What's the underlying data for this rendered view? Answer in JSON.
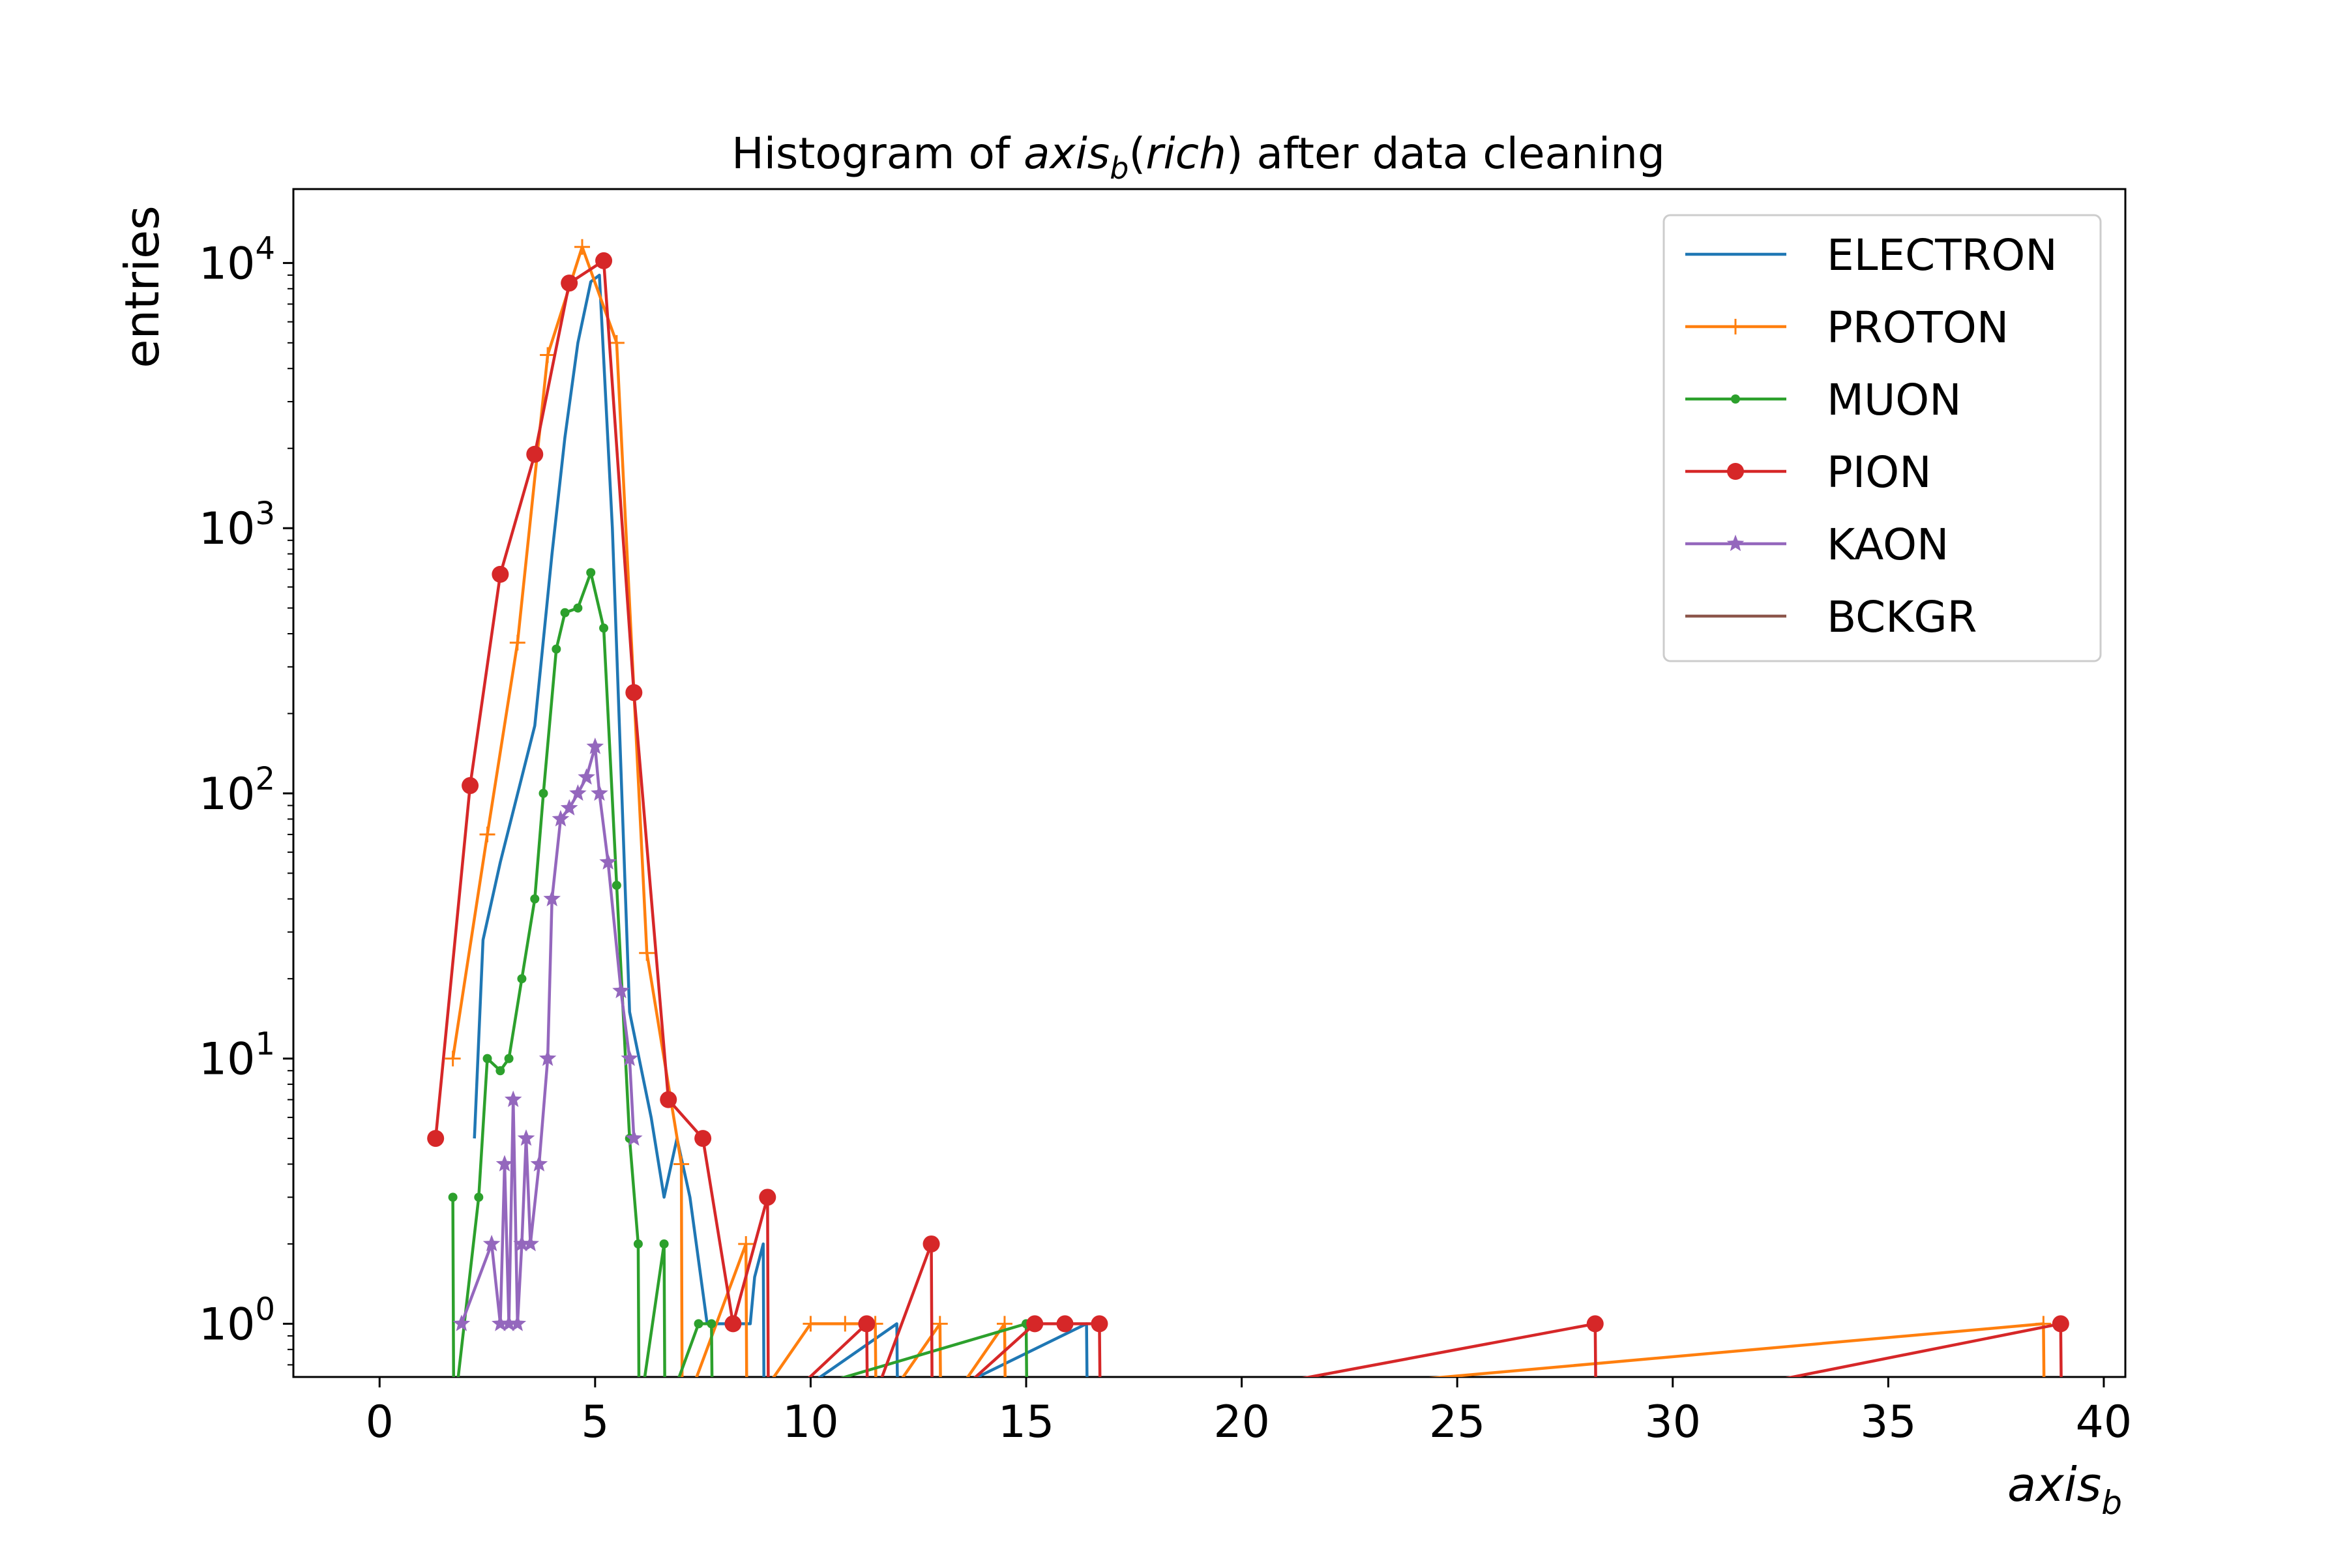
{
  "chart_data": {
    "type": "line",
    "title": {
      "prefix": "Histogram of ",
      "math_main": "axis",
      "math_sub": "b",
      "paren_open": "(",
      "math_arg": "rich",
      "paren_close": ")",
      "suffix": " after data cleaning"
    },
    "xlabel": {
      "main": "axis",
      "sub": "b"
    },
    "ylabel": "entries",
    "xlim": [
      -2,
      40.5
    ],
    "ylim": [
      0.63,
      19000
    ],
    "y_scale": "log",
    "x_ticks": [
      "0",
      "5",
      "10",
      "15",
      "20",
      "25",
      "30",
      "35",
      "40"
    ],
    "y_ticks": [
      {
        "base": "10",
        "exp": "0"
      },
      {
        "base": "10",
        "exp": "1"
      },
      {
        "base": "10",
        "exp": "2"
      },
      {
        "base": "10",
        "exp": "3"
      },
      {
        "base": "10",
        "exp": "4"
      }
    ],
    "grid": false,
    "legend_position": "top-right",
    "series": [
      {
        "name": "ELECTRON",
        "color": "#1f77b4",
        "marker": "none",
        "points": [
          [
            2.2,
            5
          ],
          [
            2.4,
            28
          ],
          [
            2.8,
            55
          ],
          [
            3.6,
            180
          ],
          [
            4.0,
            800
          ],
          [
            4.3,
            2200
          ],
          [
            4.6,
            5000
          ],
          [
            4.9,
            8500
          ],
          [
            5.1,
            9000
          ],
          [
            5.4,
            1000
          ],
          [
            5.8,
            15
          ],
          [
            6.3,
            6
          ],
          [
            6.6,
            3
          ],
          [
            6.9,
            5
          ],
          [
            7.2,
            3
          ],
          [
            7.6,
            1
          ],
          [
            8.2,
            1
          ],
          [
            8.6,
            1
          ],
          [
            8.7,
            1.5
          ],
          [
            8.9,
            2
          ],
          [
            8.92,
            0
          ],
          [
            12.0,
            1
          ],
          [
            12.02,
            0
          ],
          [
            16.4,
            1
          ],
          [
            16.42,
            0
          ]
        ]
      },
      {
        "name": "PROTON",
        "color": "#ff7f0e",
        "marker": "plus",
        "points": [
          [
            1.7,
            10
          ],
          [
            2.5,
            70
          ],
          [
            3.2,
            370
          ],
          [
            3.9,
            4500
          ],
          [
            4.7,
            11500
          ],
          [
            5.5,
            5000
          ],
          [
            6.2,
            25
          ],
          [
            7.0,
            4
          ],
          [
            7.02,
            0
          ],
          [
            8.5,
            2
          ],
          [
            8.52,
            0
          ],
          [
            10.0,
            1
          ],
          [
            10.8,
            1
          ],
          [
            11.5,
            1
          ],
          [
            11.52,
            0
          ],
          [
            13.0,
            1
          ],
          [
            13.02,
            0
          ],
          [
            14.5,
            1
          ],
          [
            14.52,
            0
          ],
          [
            38.6,
            1
          ],
          [
            38.62,
            0
          ]
        ]
      },
      {
        "name": "MUON",
        "color": "#2ca02c",
        "marker": "dot",
        "points": [
          [
            1.7,
            3
          ],
          [
            1.72,
            0
          ],
          [
            2.3,
            3
          ],
          [
            2.5,
            10
          ],
          [
            2.8,
            9
          ],
          [
            3.0,
            10
          ],
          [
            3.3,
            20
          ],
          [
            3.6,
            40
          ],
          [
            3.8,
            100
          ],
          [
            4.1,
            350
          ],
          [
            4.3,
            480
          ],
          [
            4.6,
            500
          ],
          [
            4.9,
            680
          ],
          [
            5.2,
            420
          ],
          [
            5.5,
            45
          ],
          [
            5.8,
            5
          ],
          [
            6.0,
            2
          ],
          [
            6.02,
            0
          ],
          [
            6.6,
            2
          ],
          [
            6.62,
            0
          ],
          [
            7.4,
            1
          ],
          [
            7.7,
            1
          ],
          [
            7.72,
            0
          ],
          [
            15.0,
            1
          ],
          [
            15.02,
            0
          ]
        ]
      },
      {
        "name": "PION",
        "color": "#d62728",
        "marker": "circle",
        "points": [
          [
            1.3,
            5
          ],
          [
            2.1,
            107
          ],
          [
            2.8,
            670
          ],
          [
            3.6,
            1900
          ],
          [
            4.4,
            8400
          ],
          [
            5.2,
            10200
          ],
          [
            5.9,
            240
          ],
          [
            6.7,
            7
          ],
          [
            7.5,
            5
          ],
          [
            8.2,
            1
          ],
          [
            9.0,
            3
          ],
          [
            9.02,
            0
          ],
          [
            11.3,
            1
          ],
          [
            11.32,
            0
          ],
          [
            12.8,
            2
          ],
          [
            12.82,
            0
          ],
          [
            15.2,
            1
          ],
          [
            15.9,
            1
          ],
          [
            16.7,
            1
          ],
          [
            16.72,
            0
          ],
          [
            28.2,
            1
          ],
          [
            28.22,
            0
          ],
          [
            39.0,
            1
          ],
          [
            39.02,
            0
          ]
        ]
      },
      {
        "name": "KAON",
        "color": "#9467bd",
        "marker": "star",
        "points": [
          [
            1.9,
            1
          ],
          [
            2.6,
            2
          ],
          [
            2.8,
            1
          ],
          [
            2.9,
            4
          ],
          [
            3.0,
            1
          ],
          [
            3.1,
            7
          ],
          [
            3.2,
            1
          ],
          [
            3.3,
            2
          ],
          [
            3.4,
            5
          ],
          [
            3.5,
            2
          ],
          [
            3.7,
            4
          ],
          [
            3.9,
            10
          ],
          [
            4.0,
            40
          ],
          [
            4.2,
            80
          ],
          [
            4.4,
            88
          ],
          [
            4.6,
            100
          ],
          [
            4.8,
            115
          ],
          [
            5.0,
            150
          ],
          [
            5.1,
            100
          ],
          [
            5.3,
            55
          ],
          [
            5.6,
            18
          ],
          [
            5.8,
            10
          ],
          [
            5.9,
            5
          ]
        ]
      },
      {
        "name": "BCKGR",
        "color": "#8c564b",
        "marker": "none",
        "points": []
      }
    ]
  }
}
